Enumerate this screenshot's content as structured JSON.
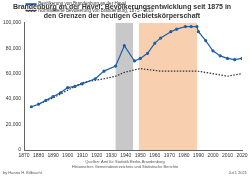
{
  "chart_data": {
    "type": "line",
    "title": [
      "Brandenburg an der Havel: Bevölkerungsentwicklung seit 1875 in",
      "den Grenzen der heutigen Gebietskörperschaft"
    ],
    "series": [
      {
        "name": "Bevölkerung von Brandenburg an der Havel",
        "color": "#1f5fa8",
        "marker": "circle",
        "line_style": "solid",
        "x": [
          1875,
          1880,
          1885,
          1890,
          1895,
          1900,
          1905,
          1910,
          1919,
          1925,
          1933,
          1939,
          1946,
          1950,
          1955,
          1960,
          1964,
          1971,
          1975,
          1981,
          1985,
          1989,
          1990,
          1995,
          2000,
          2005,
          2010,
          2015,
          2020
        ],
        "values": [
          34000,
          36000,
          39000,
          42000,
          45000,
          49000,
          50000,
          52000,
          56000,
          62000,
          66000,
          82000,
          70000,
          72000,
          76000,
          84000,
          88000,
          93000,
          95000,
          97000,
          97000,
          97000,
          93000,
          86000,
          78000,
          74000,
          72000,
          71000,
          72000
        ]
      },
      {
        "name": "Normalisierte Bevölkerung von Brandenburg, 1875 - 2019",
        "color": "#2b2b4a",
        "marker": "none",
        "line_style": "dotted",
        "x": [
          1875,
          1880,
          1890,
          1900,
          1910,
          1925,
          1933,
          1939,
          1946,
          1950,
          1964,
          1971,
          1981,
          1989,
          1995,
          2000,
          2005,
          2010,
          2015,
          2020
        ],
        "values": [
          34000,
          36000,
          41000,
          47000,
          53000,
          56000,
          58000,
          61000,
          63000,
          64000,
          62000,
          62000,
          62000,
          62000,
          61000,
          60000,
          59000,
          58000,
          59000,
          60000
        ]
      }
    ],
    "periods": [
      {
        "from": 1933,
        "to": 1945,
        "color": "#c8c8c8"
      },
      {
        "from": 1949,
        "to": 1989,
        "color": "#f8d0b0"
      }
    ],
    "xlim": [
      1870,
      2020
    ],
    "xticks": [
      1870,
      1880,
      1890,
      1900,
      1910,
      1920,
      1930,
      1940,
      1950,
      1960,
      1970,
      1980,
      1990,
      2000,
      2010,
      2020
    ],
    "ylim": [
      0,
      100000
    ],
    "yticks": [
      0,
      {
        "value": 20000,
        "label": "20,000"
      },
      {
        "value": 40000,
        "label": "40,000"
      },
      {
        "value": 60000,
        "label": "60,000"
      },
      {
        "value": 80000,
        "label": "80,000"
      },
      {
        "value": 100000,
        "label": "100,000"
      }
    ],
    "grid": false,
    "legend": "upper left",
    "annotations": [
      "Quellen: Amt für Statistik Berlin-Brandenburg",
      "Historisches Gemeindeverzeichnis und Statistische Berichte",
      "by Hanno H. Eilbracht",
      "Jul 1 2021"
    ]
  }
}
